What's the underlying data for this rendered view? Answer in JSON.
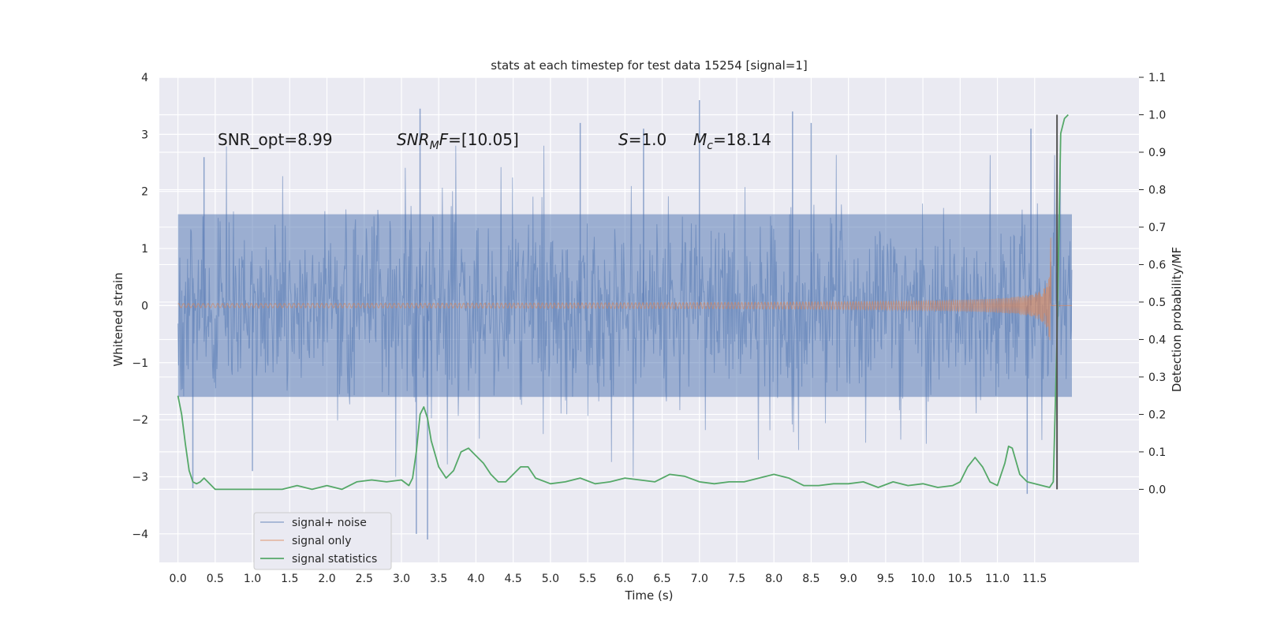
{
  "chart_data": {
    "type": "line",
    "title": "stats at each timestep for test data 15254 [signal=1]",
    "xlabel": "Time (s)",
    "ylabel": "Whitened strain",
    "y2label": "Detection probability/MF",
    "xlim": [
      -0.25,
      12.9
    ],
    "ylim": [
      -4.5,
      4.0
    ],
    "y2lim": [
      -0.195,
      1.1
    ],
    "x_ticks": [
      0.0,
      0.5,
      1.0,
      1.5,
      2.0,
      2.5,
      3.0,
      3.5,
      4.0,
      4.5,
      5.0,
      5.5,
      6.0,
      6.5,
      7.0,
      7.5,
      8.0,
      8.5,
      9.0,
      9.5,
      10.0,
      10.5,
      11.0,
      11.5
    ],
    "x_tick_labels": [
      "0.0",
      "0.5",
      "1.0",
      "1.5",
      "2.0",
      "2.5",
      "3.0",
      "3.5",
      "4.0",
      "4.5",
      "5.0",
      "5.5",
      "6.0",
      "6.5",
      "7.0",
      "7.5",
      "8.0",
      "8.5",
      "9.0",
      "9.5",
      "10.0",
      "10.5",
      "11.0",
      "11.5"
    ],
    "y_ticks": [
      -4,
      -3,
      -2,
      -1,
      0,
      1,
      2,
      3,
      4
    ],
    "y_tick_labels": [
      "−4",
      "−3",
      "−2",
      "−1",
      "0",
      "1",
      "2",
      "3",
      "4"
    ],
    "y2_ticks": [
      0.0,
      0.1,
      0.2,
      0.3,
      0.4,
      0.5,
      0.6,
      0.7,
      0.8,
      0.9,
      1.0,
      1.1
    ],
    "y2_tick_labels": [
      "0.0",
      "0.1",
      "0.2",
      "0.3",
      "0.4",
      "0.5",
      "0.6",
      "0.7",
      "0.8",
      "0.9",
      "1.0",
      "1.1"
    ],
    "grid": true,
    "legend_position": "lower-left",
    "annotations": [
      {
        "text": "SNR_opt=8.99",
        "x": 0.2,
        "y": 2.85
      },
      {
        "text": "SNR_MF=[10.05]",
        "x": 2.6,
        "y": 2.85
      },
      {
        "text": "S=1.0",
        "x": 5.6,
        "y": 2.85
      },
      {
        "text": "M_c=18.14",
        "x": 6.6,
        "y": 2.85
      }
    ],
    "vertical_line": {
      "x": 11.8,
      "y2_range": [
        0.0,
        1.0
      ],
      "color": "#555555"
    },
    "series": [
      {
        "name": "signal+ noise",
        "color": "#4c72b0",
        "axis": "left",
        "x_range": [
          0.0,
          12.0
        ],
        "typical_band": [
          -1.6,
          1.6
        ],
        "peaks": [
          {
            "x": 0.2,
            "y": -3.2
          },
          {
            "x": 0.35,
            "y": 2.6
          },
          {
            "x": 1.0,
            "y": -2.9
          },
          {
            "x": 3.25,
            "y": 3.45
          },
          {
            "x": 3.2,
            "y": -4.0
          },
          {
            "x": 3.35,
            "y": -4.1
          },
          {
            "x": 5.4,
            "y": 3.2
          },
          {
            "x": 6.25,
            "y": 3.1
          },
          {
            "x": 7.0,
            "y": 3.6
          },
          {
            "x": 8.25,
            "y": 3.4
          },
          {
            "x": 8.5,
            "y": 3.2
          },
          {
            "x": 11.4,
            "y": -3.3
          },
          {
            "x": 11.45,
            "y": 3.1
          }
        ]
      },
      {
        "name": "signal only",
        "color": "#dd8452",
        "axis": "left",
        "x_range": [
          0.0,
          12.0
        ],
        "chirp_end": 11.72,
        "peak_amplitude": 1.55
      },
      {
        "name": "signal statistics",
        "color": "#55a868",
        "axis": "right",
        "x": [
          0.0,
          0.05,
          0.1,
          0.15,
          0.2,
          0.25,
          0.3,
          0.35,
          0.4,
          0.45,
          0.5,
          0.6,
          0.8,
          1.0,
          1.2,
          1.4,
          1.6,
          1.8,
          2.0,
          2.2,
          2.4,
          2.6,
          2.8,
          3.0,
          3.1,
          3.15,
          3.2,
          3.25,
          3.3,
          3.35,
          3.4,
          3.5,
          3.6,
          3.7,
          3.8,
          3.9,
          4.0,
          4.1,
          4.2,
          4.3,
          4.4,
          4.5,
          4.6,
          4.7,
          4.8,
          5.0,
          5.2,
          5.4,
          5.6,
          5.8,
          6.0,
          6.2,
          6.4,
          6.6,
          6.8,
          7.0,
          7.2,
          7.4,
          7.6,
          7.8,
          8.0,
          8.2,
          8.4,
          8.6,
          8.8,
          9.0,
          9.2,
          9.4,
          9.6,
          9.8,
          10.0,
          10.2,
          10.4,
          10.5,
          10.6,
          10.7,
          10.8,
          10.9,
          11.0,
          11.1,
          11.15,
          11.2,
          11.3,
          11.4,
          11.5,
          11.6,
          11.7,
          11.75,
          11.8,
          11.85,
          11.9,
          11.95
        ],
        "y": [
          0.25,
          0.2,
          0.12,
          0.05,
          0.02,
          0.015,
          0.02,
          0.03,
          0.02,
          0.01,
          0.0,
          0.0,
          0.0,
          0.0,
          0.0,
          0.0,
          0.01,
          0.0,
          0.01,
          0.0,
          0.02,
          0.025,
          0.02,
          0.025,
          0.01,
          0.03,
          0.1,
          0.2,
          0.22,
          0.19,
          0.13,
          0.06,
          0.03,
          0.05,
          0.1,
          0.11,
          0.09,
          0.07,
          0.04,
          0.02,
          0.02,
          0.04,
          0.06,
          0.06,
          0.03,
          0.015,
          0.02,
          0.03,
          0.015,
          0.02,
          0.03,
          0.025,
          0.02,
          0.04,
          0.035,
          0.02,
          0.015,
          0.02,
          0.02,
          0.03,
          0.04,
          0.03,
          0.01,
          0.01,
          0.015,
          0.015,
          0.02,
          0.005,
          0.02,
          0.01,
          0.015,
          0.005,
          0.01,
          0.02,
          0.06,
          0.085,
          0.06,
          0.02,
          0.01,
          0.07,
          0.115,
          0.11,
          0.04,
          0.02,
          0.015,
          0.01,
          0.005,
          0.02,
          0.4,
          0.95,
          0.99,
          1.0
        ]
      }
    ]
  }
}
